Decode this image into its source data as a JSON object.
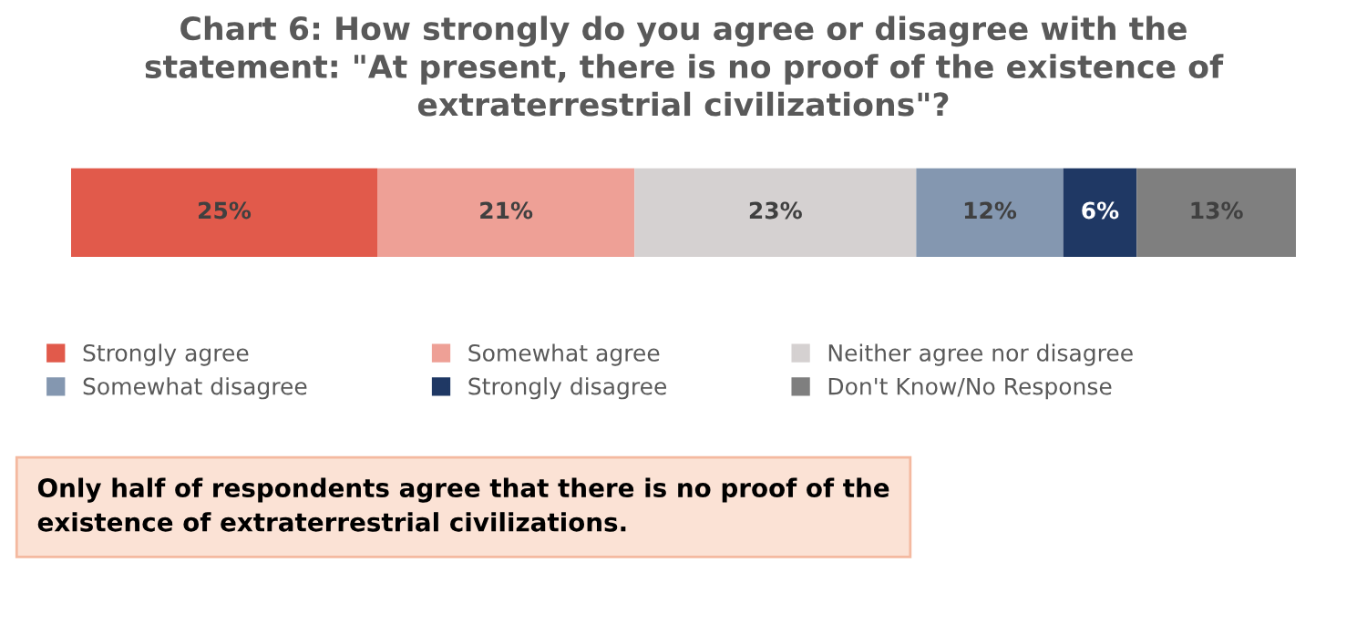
{
  "chart_data": {
    "type": "bar",
    "orientation": "horizontal",
    "stacked": true,
    "title": "Chart 6: How strongly do you agree or disagree with the\nstatement: \"At present, there is no proof of the existence of\nextraterrestrial civilizations\"?",
    "categories": [
      null
    ],
    "series": [
      {
        "name": "Strongly agree",
        "color": "#e15a4b",
        "values": [
          25
        ],
        "value_labels": [
          "25%"
        ]
      },
      {
        "name": "Somewhat agree",
        "color": "#eea096",
        "values": [
          21
        ],
        "value_labels": [
          "21%"
        ]
      },
      {
        "name": "Neither agree nor disagree",
        "color": "#d5d1d1",
        "values": [
          23
        ],
        "value_labels": [
          "23%"
        ]
      },
      {
        "name": "Somewhat disagree",
        "color": "#8497b0",
        "values": [
          12
        ],
        "value_labels": [
          "12%"
        ]
      },
      {
        "name": "Strongly disagree",
        "color": "#1f3864",
        "values": [
          6
        ],
        "value_labels": [
          "6%"
        ]
      },
      {
        "name": "Don't Know/No Response",
        "color": "#7f7f7f",
        "values": [
          13
        ],
        "value_labels": [
          "13%"
        ]
      }
    ],
    "legend": "bottom",
    "annotations": [
      "Only half of respondents agree that there is no proof of the\nexistence of extraterrestrial civilizations."
    ]
  }
}
